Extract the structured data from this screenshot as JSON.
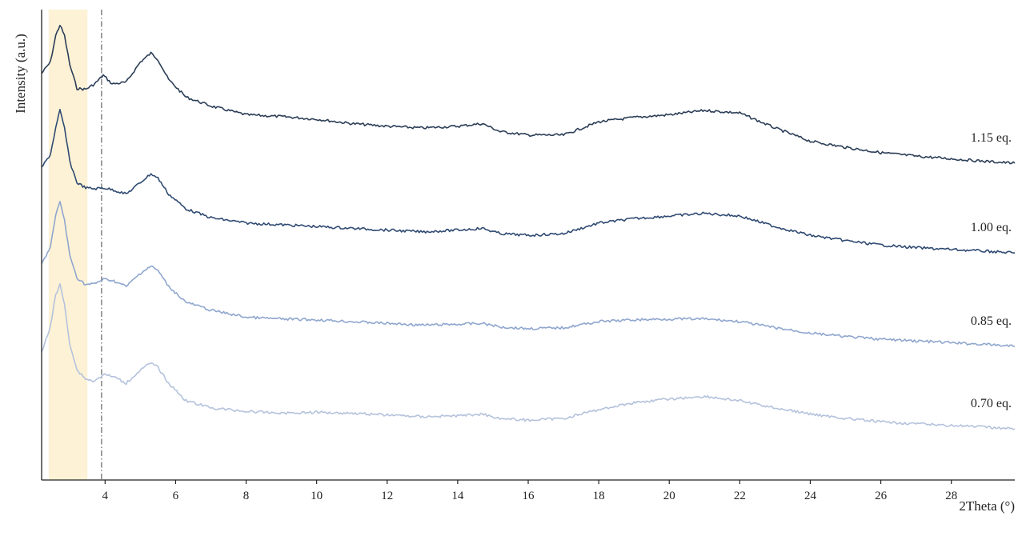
{
  "chart_data": {
    "type": "line",
    "title": "",
    "xlabel": "2Theta (°)",
    "ylabel": "Intensity (a.u.)",
    "xlim": [
      2.2,
      29.8
    ],
    "x_ticks": [
      4,
      6,
      8,
      10,
      12,
      14,
      16,
      18,
      20,
      22,
      24,
      26,
      28
    ],
    "grid": false,
    "legend": "inline labels at right end of each trace",
    "highlight_band": {
      "x_range": [
        2.4,
        3.5
      ],
      "color": "#fdf2d6"
    },
    "reference_line": {
      "x": 3.9,
      "style": "dash-dot",
      "color": "#555555"
    },
    "series": [
      {
        "name": "1.15 eq.",
        "color": "#2c3e57",
        "x": [
          2.2,
          2.45,
          2.6,
          2.72,
          2.85,
          3.0,
          3.2,
          3.45,
          3.7,
          3.95,
          4.2,
          4.6,
          5.0,
          5.3,
          5.5,
          5.8,
          6.3,
          7.0,
          8.0,
          9.0,
          10.0,
          11.0,
          12.0,
          13.0,
          14.0,
          14.7,
          15.2,
          16.0,
          17.0,
          18.0,
          19.0,
          20.0,
          21.0,
          22.0,
          23.0,
          24.0,
          25.0,
          26.0,
          27.0,
          28.0,
          29.0,
          29.8
        ],
        "y": [
          4.62,
          4.75,
          5.05,
          5.17,
          5.05,
          4.72,
          4.45,
          4.44,
          4.5,
          4.6,
          4.5,
          4.52,
          4.75,
          4.85,
          4.78,
          4.55,
          4.35,
          4.25,
          4.15,
          4.13,
          4.1,
          4.05,
          4.02,
          4.0,
          4.02,
          4.05,
          3.96,
          3.92,
          3.92,
          4.07,
          4.12,
          4.15,
          4.2,
          4.17,
          4.0,
          3.85,
          3.78,
          3.72,
          3.68,
          3.65,
          3.62,
          3.6
        ]
      },
      {
        "name": "1.00 eq.",
        "color": "#2f4a72",
        "x": [
          2.2,
          2.45,
          2.6,
          2.72,
          2.85,
          3.0,
          3.2,
          3.45,
          3.7,
          3.95,
          4.2,
          4.6,
          5.0,
          5.3,
          5.5,
          5.8,
          6.3,
          7.0,
          8.0,
          9.0,
          10.0,
          11.0,
          12.0,
          13.0,
          14.0,
          14.7,
          15.2,
          16.0,
          17.0,
          18.0,
          19.0,
          20.0,
          21.0,
          22.0,
          23.0,
          24.0,
          25.0,
          26.0,
          27.0,
          28.0,
          29.0,
          29.8
        ],
        "y": [
          3.55,
          3.7,
          4.0,
          4.2,
          4.0,
          3.62,
          3.38,
          3.32,
          3.31,
          3.32,
          3.3,
          3.25,
          3.38,
          3.48,
          3.43,
          3.25,
          3.08,
          2.98,
          2.92,
          2.9,
          2.88,
          2.86,
          2.84,
          2.82,
          2.84,
          2.86,
          2.8,
          2.78,
          2.8,
          2.92,
          2.97,
          3.0,
          3.03,
          3.0,
          2.88,
          2.78,
          2.72,
          2.67,
          2.64,
          2.62,
          2.6,
          2.58
        ]
      },
      {
        "name": "0.85 eq.",
        "color": "#8fa6ce",
        "x": [
          2.2,
          2.45,
          2.6,
          2.72,
          2.85,
          3.0,
          3.2,
          3.45,
          3.7,
          3.95,
          4.2,
          4.6,
          5.0,
          5.3,
          5.5,
          5.8,
          6.3,
          7.0,
          8.0,
          9.0,
          10.0,
          11.0,
          12.0,
          13.0,
          14.0,
          14.7,
          15.2,
          16.0,
          17.0,
          18.0,
          19.0,
          20.0,
          21.0,
          22.0,
          23.0,
          24.0,
          25.0,
          26.0,
          27.0,
          28.0,
          29.0,
          29.8
        ],
        "y": [
          2.45,
          2.65,
          3.0,
          3.17,
          2.95,
          2.55,
          2.3,
          2.22,
          2.23,
          2.28,
          2.27,
          2.2,
          2.35,
          2.43,
          2.38,
          2.2,
          2.02,
          1.93,
          1.85,
          1.83,
          1.82,
          1.8,
          1.78,
          1.76,
          1.77,
          1.78,
          1.74,
          1.72,
          1.73,
          1.8,
          1.82,
          1.83,
          1.83,
          1.8,
          1.73,
          1.67,
          1.63,
          1.6,
          1.58,
          1.56,
          1.54,
          1.52
        ]
      },
      {
        "name": "0.70 eq.",
        "color": "#b4c2dc",
        "x": [
          2.2,
          2.45,
          2.6,
          2.72,
          2.85,
          3.0,
          3.2,
          3.45,
          3.7,
          3.95,
          4.2,
          4.6,
          5.0,
          5.3,
          5.5,
          5.8,
          6.3,
          7.0,
          8.0,
          9.0,
          10.0,
          11.0,
          12.0,
          13.0,
          14.0,
          14.7,
          15.2,
          16.0,
          17.0,
          18.0,
          19.0,
          20.0,
          21.0,
          22.0,
          23.0,
          24.0,
          25.0,
          26.0,
          27.0,
          28.0,
          29.0,
          29.8
        ],
        "y": [
          1.45,
          1.75,
          2.1,
          2.22,
          2.0,
          1.55,
          1.25,
          1.15,
          1.12,
          1.2,
          1.18,
          1.1,
          1.25,
          1.33,
          1.28,
          1.1,
          0.9,
          0.82,
          0.78,
          0.76,
          0.77,
          0.76,
          0.74,
          0.72,
          0.73,
          0.75,
          0.7,
          0.68,
          0.7,
          0.8,
          0.88,
          0.92,
          0.95,
          0.9,
          0.82,
          0.75,
          0.7,
          0.66,
          0.64,
          0.62,
          0.6,
          0.58
        ]
      }
    ]
  }
}
